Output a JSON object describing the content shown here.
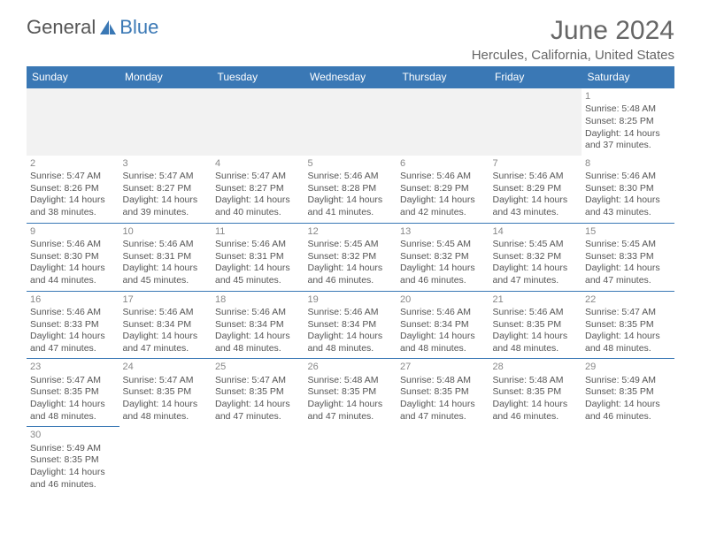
{
  "logo": {
    "text1": "General",
    "text2": "Blue"
  },
  "title": "June 2024",
  "location": "Hercules, California, United States",
  "colors": {
    "header_bg": "#3a78b5",
    "header_text": "#ffffff",
    "cell_border": "#3a78b5",
    "text": "#555555",
    "title_text": "#666666",
    "empty_bg": "#f2f2f2",
    "page_bg": "#ffffff"
  },
  "typography": {
    "title_fontsize": 30,
    "location_fontsize": 15,
    "header_fontsize": 12,
    "cell_fontsize": 10.5
  },
  "weekday_headers": [
    "Sunday",
    "Monday",
    "Tuesday",
    "Wednesday",
    "Thursday",
    "Friday",
    "Saturday"
  ],
  "weeks": [
    [
      null,
      null,
      null,
      null,
      null,
      null,
      {
        "d": "1",
        "sr": "Sunrise: 5:48 AM",
        "ss": "Sunset: 8:25 PM",
        "dl1": "Daylight: 14 hours",
        "dl2": "and 37 minutes."
      }
    ],
    [
      {
        "d": "2",
        "sr": "Sunrise: 5:47 AM",
        "ss": "Sunset: 8:26 PM",
        "dl1": "Daylight: 14 hours",
        "dl2": "and 38 minutes."
      },
      {
        "d": "3",
        "sr": "Sunrise: 5:47 AM",
        "ss": "Sunset: 8:27 PM",
        "dl1": "Daylight: 14 hours",
        "dl2": "and 39 minutes."
      },
      {
        "d": "4",
        "sr": "Sunrise: 5:47 AM",
        "ss": "Sunset: 8:27 PM",
        "dl1": "Daylight: 14 hours",
        "dl2": "and 40 minutes."
      },
      {
        "d": "5",
        "sr": "Sunrise: 5:46 AM",
        "ss": "Sunset: 8:28 PM",
        "dl1": "Daylight: 14 hours",
        "dl2": "and 41 minutes."
      },
      {
        "d": "6",
        "sr": "Sunrise: 5:46 AM",
        "ss": "Sunset: 8:29 PM",
        "dl1": "Daylight: 14 hours",
        "dl2": "and 42 minutes."
      },
      {
        "d": "7",
        "sr": "Sunrise: 5:46 AM",
        "ss": "Sunset: 8:29 PM",
        "dl1": "Daylight: 14 hours",
        "dl2": "and 43 minutes."
      },
      {
        "d": "8",
        "sr": "Sunrise: 5:46 AM",
        "ss": "Sunset: 8:30 PM",
        "dl1": "Daylight: 14 hours",
        "dl2": "and 43 minutes."
      }
    ],
    [
      {
        "d": "9",
        "sr": "Sunrise: 5:46 AM",
        "ss": "Sunset: 8:30 PM",
        "dl1": "Daylight: 14 hours",
        "dl2": "and 44 minutes."
      },
      {
        "d": "10",
        "sr": "Sunrise: 5:46 AM",
        "ss": "Sunset: 8:31 PM",
        "dl1": "Daylight: 14 hours",
        "dl2": "and 45 minutes."
      },
      {
        "d": "11",
        "sr": "Sunrise: 5:46 AM",
        "ss": "Sunset: 8:31 PM",
        "dl1": "Daylight: 14 hours",
        "dl2": "and 45 minutes."
      },
      {
        "d": "12",
        "sr": "Sunrise: 5:45 AM",
        "ss": "Sunset: 8:32 PM",
        "dl1": "Daylight: 14 hours",
        "dl2": "and 46 minutes."
      },
      {
        "d": "13",
        "sr": "Sunrise: 5:45 AM",
        "ss": "Sunset: 8:32 PM",
        "dl1": "Daylight: 14 hours",
        "dl2": "and 46 minutes."
      },
      {
        "d": "14",
        "sr": "Sunrise: 5:45 AM",
        "ss": "Sunset: 8:32 PM",
        "dl1": "Daylight: 14 hours",
        "dl2": "and 47 minutes."
      },
      {
        "d": "15",
        "sr": "Sunrise: 5:45 AM",
        "ss": "Sunset: 8:33 PM",
        "dl1": "Daylight: 14 hours",
        "dl2": "and 47 minutes."
      }
    ],
    [
      {
        "d": "16",
        "sr": "Sunrise: 5:46 AM",
        "ss": "Sunset: 8:33 PM",
        "dl1": "Daylight: 14 hours",
        "dl2": "and 47 minutes."
      },
      {
        "d": "17",
        "sr": "Sunrise: 5:46 AM",
        "ss": "Sunset: 8:34 PM",
        "dl1": "Daylight: 14 hours",
        "dl2": "and 47 minutes."
      },
      {
        "d": "18",
        "sr": "Sunrise: 5:46 AM",
        "ss": "Sunset: 8:34 PM",
        "dl1": "Daylight: 14 hours",
        "dl2": "and 48 minutes."
      },
      {
        "d": "19",
        "sr": "Sunrise: 5:46 AM",
        "ss": "Sunset: 8:34 PM",
        "dl1": "Daylight: 14 hours",
        "dl2": "and 48 minutes."
      },
      {
        "d": "20",
        "sr": "Sunrise: 5:46 AM",
        "ss": "Sunset: 8:34 PM",
        "dl1": "Daylight: 14 hours",
        "dl2": "and 48 minutes."
      },
      {
        "d": "21",
        "sr": "Sunrise: 5:46 AM",
        "ss": "Sunset: 8:35 PM",
        "dl1": "Daylight: 14 hours",
        "dl2": "and 48 minutes."
      },
      {
        "d": "22",
        "sr": "Sunrise: 5:47 AM",
        "ss": "Sunset: 8:35 PM",
        "dl1": "Daylight: 14 hours",
        "dl2": "and 48 minutes."
      }
    ],
    [
      {
        "d": "23",
        "sr": "Sunrise: 5:47 AM",
        "ss": "Sunset: 8:35 PM",
        "dl1": "Daylight: 14 hours",
        "dl2": "and 48 minutes."
      },
      {
        "d": "24",
        "sr": "Sunrise: 5:47 AM",
        "ss": "Sunset: 8:35 PM",
        "dl1": "Daylight: 14 hours",
        "dl2": "and 48 minutes."
      },
      {
        "d": "25",
        "sr": "Sunrise: 5:47 AM",
        "ss": "Sunset: 8:35 PM",
        "dl1": "Daylight: 14 hours",
        "dl2": "and 47 minutes."
      },
      {
        "d": "26",
        "sr": "Sunrise: 5:48 AM",
        "ss": "Sunset: 8:35 PM",
        "dl1": "Daylight: 14 hours",
        "dl2": "and 47 minutes."
      },
      {
        "d": "27",
        "sr": "Sunrise: 5:48 AM",
        "ss": "Sunset: 8:35 PM",
        "dl1": "Daylight: 14 hours",
        "dl2": "and 47 minutes."
      },
      {
        "d": "28",
        "sr": "Sunrise: 5:48 AM",
        "ss": "Sunset: 8:35 PM",
        "dl1": "Daylight: 14 hours",
        "dl2": "and 46 minutes."
      },
      {
        "d": "29",
        "sr": "Sunrise: 5:49 AM",
        "ss": "Sunset: 8:35 PM",
        "dl1": "Daylight: 14 hours",
        "dl2": "and 46 minutes."
      }
    ],
    [
      {
        "d": "30",
        "sr": "Sunrise: 5:49 AM",
        "ss": "Sunset: 8:35 PM",
        "dl1": "Daylight: 14 hours",
        "dl2": "and 46 minutes."
      },
      null,
      null,
      null,
      null,
      null,
      null
    ]
  ]
}
